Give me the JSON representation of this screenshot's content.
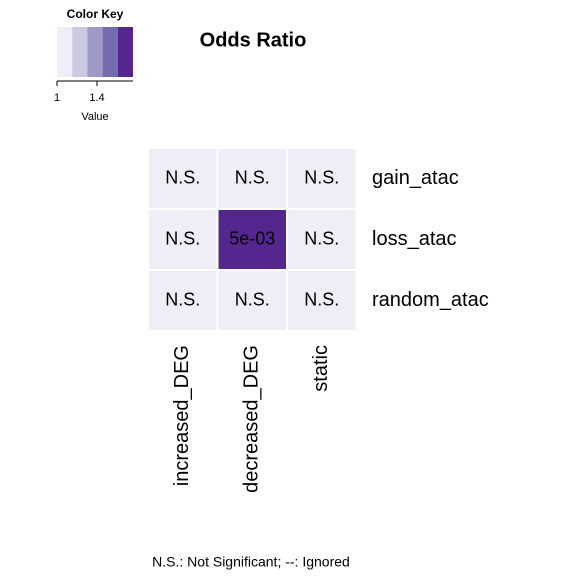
{
  "chart_data": {
    "type": "heatmap",
    "title": "Odds Ratio",
    "rows": [
      "gain_atac",
      "loss_atac",
      "random_atac"
    ],
    "columns": [
      "increased_DEG",
      "decreased_DEG",
      "static"
    ],
    "values": [
      [
        1,
        1,
        1
      ],
      [
        1,
        1.75,
        1
      ],
      [
        1,
        1,
        1
      ]
    ],
    "cell_labels": [
      [
        "N.S.",
        "N.S.",
        "N.S."
      ],
      [
        "N.S.",
        "5e-03",
        "N.S."
      ],
      [
        "N.S.",
        "N.S.",
        "N.S."
      ]
    ],
    "colors": [
      "#efedf5",
      "#cbc9e2",
      "#9e9ac8",
      "#756bb1",
      "#54278f"
    ],
    "key_title": "Color Key",
    "key_label": "Value",
    "key_lim": [
      1,
      1.76
    ],
    "key_ticks": [
      1,
      1.4
    ],
    "footnote": "N.S.: Not Significant; --: Ignored"
  }
}
